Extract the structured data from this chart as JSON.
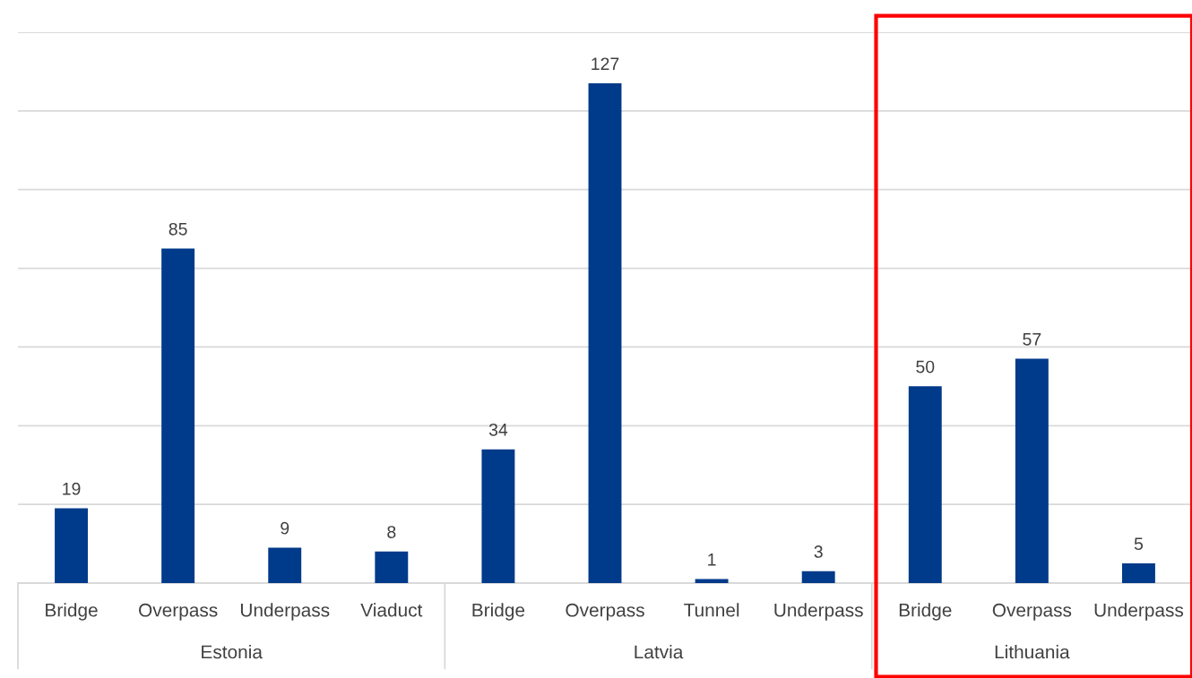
{
  "chart_data": {
    "type": "bar",
    "categories": [
      "Bridge",
      "Overpass",
      "Underpass",
      "Viaduct",
      "Bridge",
      "Overpass",
      "Tunnel",
      "Underpass",
      "Bridge",
      "Overpass",
      "Underpass"
    ],
    "values": [
      19,
      85,
      9,
      8,
      34,
      127,
      1,
      3,
      50,
      57,
      5
    ],
    "color": "#003a8a",
    "data_labels": true,
    "ylim": [
      0,
      140
    ],
    "yticks": [
      {
        "value": 0,
        "label": null
      },
      {
        "value": 20,
        "label": null
      },
      {
        "value": 40,
        "label": null
      },
      {
        "value": 60,
        "label": null
      },
      {
        "value": 80,
        "label": null
      },
      {
        "value": 100,
        "label": null
      },
      {
        "value": 120,
        "label": null
      },
      {
        "value": 140,
        "label": null
      }
    ],
    "grid": "y",
    "tick_labels": "x",
    "annotations": [
      "Estonia",
      "Latvia",
      "Lithuania"
    ]
  }
}
